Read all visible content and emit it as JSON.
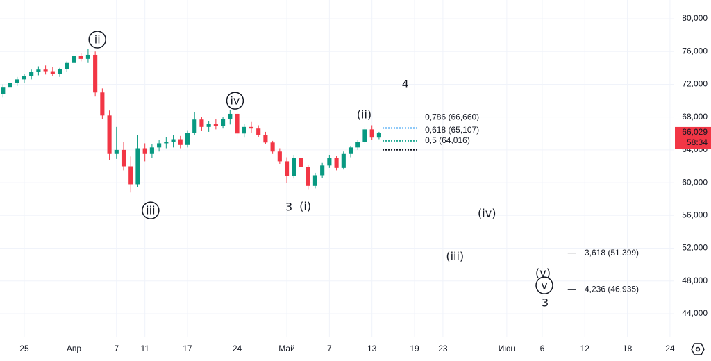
{
  "chart_data": {
    "type": "candlestick",
    "up_color": "#089981",
    "down_color": "#f23645",
    "grid": true,
    "xlim": [
      -3.42,
      91.5
    ],
    "ylim": [
      41200,
      82290
    ],
    "yticks": [
      {
        "value": 80000,
        "label": "80,000"
      },
      {
        "value": 76000,
        "label": "76,000"
      },
      {
        "value": 72000,
        "label": "72,000"
      },
      {
        "value": 68000,
        "label": "68,000"
      },
      {
        "value": 64000,
        "label": "64,000"
      },
      {
        "value": 60000,
        "label": "60,000"
      },
      {
        "value": 56000,
        "label": "56,000"
      },
      {
        "value": 52000,
        "label": "52,000"
      },
      {
        "value": 48000,
        "label": "48,000"
      },
      {
        "value": 44000,
        "label": "44,000"
      }
    ],
    "xticks": [
      {
        "value": 0,
        "label": "25"
      },
      {
        "value": 7,
        "label": "Апр"
      },
      {
        "value": 13,
        "label": "7"
      },
      {
        "value": 17,
        "label": "11"
      },
      {
        "value": 23,
        "label": "17"
      },
      {
        "value": 30,
        "label": "24"
      },
      {
        "value": 37,
        "label": "Май"
      },
      {
        "value": 43,
        "label": "7"
      },
      {
        "value": 49,
        "label": "13"
      },
      {
        "value": 55,
        "label": "19"
      },
      {
        "value": 59,
        "label": "23"
      },
      {
        "value": 68,
        "label": "Июн"
      },
      {
        "value": 73,
        "label": "6"
      },
      {
        "value": 79,
        "label": "12"
      },
      {
        "value": 85,
        "label": "18"
      },
      {
        "value": 91,
        "label": "24"
      }
    ],
    "x": [
      -3,
      -2,
      -1,
      0,
      1,
      2,
      3,
      4,
      5,
      6,
      7,
      8,
      9,
      10,
      11,
      12,
      13,
      14,
      15,
      16,
      17,
      18,
      19,
      20,
      21,
      22,
      23,
      24,
      25,
      26,
      27,
      28,
      29,
      30,
      31,
      32,
      33,
      34,
      35,
      36,
      37,
      38,
      39,
      40,
      41,
      42,
      43,
      44,
      45,
      46,
      47,
      48,
      49,
      50
    ],
    "open": [
      70800,
      71600,
      72200,
      72600,
      73000,
      73500,
      73800,
      73600,
      73300,
      73900,
      74600,
      75500,
      75100,
      75600,
      71000,
      68200,
      63500,
      64000,
      62000,
      59800,
      64200,
      63500,
      64300,
      64800,
      65000,
      65300,
      64600,
      66100,
      67700,
      66800,
      67200,
      66900,
      67800,
      68400,
      66000,
      66800,
      66600,
      65800,
      64900,
      63800,
      62600,
      60800,
      63000,
      61900,
      59600,
      60900,
      62100,
      63000,
      61800,
      63500,
      64300,
      65000,
      66500,
      65500
    ],
    "high": [
      72000,
      72600,
      72900,
      73300,
      73800,
      74200,
      74300,
      74100,
      74000,
      74800,
      75900,
      75800,
      76300,
      76000,
      71500,
      68800,
      66800,
      65000,
      63200,
      65800,
      64800,
      64700,
      65200,
      65600,
      65800,
      65700,
      66400,
      68600,
      68000,
      67500,
      67800,
      68000,
      68900,
      68700,
      67200,
      67400,
      67000,
      66200,
      65100,
      64200,
      63100,
      63400,
      63500,
      62200,
      61200,
      62400,
      63400,
      63300,
      63800,
      64500,
      65200,
      66800,
      67000,
      66200
    ],
    "low": [
      70400,
      71200,
      71800,
      72200,
      72600,
      73100,
      73200,
      73000,
      72900,
      73500,
      74300,
      74800,
      74600,
      70500,
      67800,
      62800,
      62900,
      61500,
      58800,
      59500,
      62600,
      63000,
      63800,
      64200,
      64300,
      64200,
      64300,
      65800,
      66300,
      66200,
      66500,
      66600,
      67100,
      65400,
      65500,
      66100,
      65600,
      64700,
      63500,
      62300,
      60000,
      60500,
      61600,
      59200,
      59300,
      60600,
      61800,
      61500,
      61600,
      63100,
      64000,
      64700,
      65200,
      65300
    ],
    "close": [
      71600,
      72200,
      72600,
      73000,
      73500,
      73800,
      73600,
      73300,
      73900,
      74600,
      75500,
      75100,
      75600,
      71000,
      68200,
      63500,
      64000,
      62000,
      59800,
      64200,
      63500,
      64300,
      64800,
      65000,
      65300,
      64600,
      66100,
      67700,
      66800,
      67200,
      66900,
      67800,
      68400,
      66000,
      66800,
      66600,
      65800,
      64900,
      63800,
      62600,
      60800,
      63000,
      61900,
      59600,
      60900,
      62100,
      63000,
      61800,
      63500,
      64300,
      65000,
      66500,
      65500,
      66029
    ],
    "last_price": {
      "value": 66029,
      "label": "66,029",
      "countdown": "58:34"
    },
    "annotations": [
      {
        "text": "ii",
        "x": 10.3,
        "y": 77460,
        "circled": true,
        "color": "#131722"
      },
      {
        "text": "iii",
        "x": 17.8,
        "y": 56610,
        "circled": true,
        "color": "#131722"
      },
      {
        "text": "iv",
        "x": 29.7,
        "y": 70000,
        "circled": true,
        "color": "#131722"
      },
      {
        "text": "(ii)",
        "x": 47.9,
        "y": 68300,
        "circled": false,
        "color": "#131722"
      },
      {
        "text": "3",
        "x": 37.3,
        "y": 57040,
        "circled": false,
        "color": "#f23645"
      },
      {
        "text": "(i)",
        "x": 39.6,
        "y": 57120,
        "circled": false,
        "color": "#131722"
      },
      {
        "text": "4",
        "x": 53.7,
        "y": 72040,
        "circled": false,
        "color": "#f23645"
      },
      {
        "text": "(iv)",
        "x": 65.2,
        "y": 56270,
        "circled": false,
        "color": "#131722"
      },
      {
        "text": "(iii)",
        "x": 60.7,
        "y": 51020,
        "circled": false,
        "color": "#131722"
      },
      {
        "text": "(v)",
        "x": 73.1,
        "y": 48980,
        "circled": false,
        "color": "#131722"
      },
      {
        "text": "v",
        "x": 73.3,
        "y": 47460,
        "circled": true,
        "color": "#131722"
      },
      {
        "text": "3",
        "x": 73.4,
        "y": 45340,
        "circled": false,
        "color": "#131722"
      }
    ],
    "fib_levels": [
      {
        "text": "0,786 (66,660)",
        "value": 66660,
        "color": "#2196f3",
        "x": [
          50.5,
          55.5
        ],
        "dotted": true
      },
      {
        "text": "0,618 (65,107)",
        "value": 65107,
        "color": "#22ab94",
        "x": [
          50.5,
          55.5
        ],
        "dotted": true
      },
      {
        "text": "0,5 (64,016)",
        "value": 64016,
        "color": "#131722",
        "x": [
          50.5,
          55.5
        ],
        "dotted": true
      },
      {
        "text": "3,618 (51,399)",
        "value": 51399,
        "color": "#131722",
        "x": [
          76.6,
          77.8
        ],
        "dotted": false
      },
      {
        "text": "4,236 (46,935)",
        "value": 46935,
        "color": "#131722",
        "x": [
          76.6,
          77.8
        ],
        "dotted": false
      }
    ]
  }
}
